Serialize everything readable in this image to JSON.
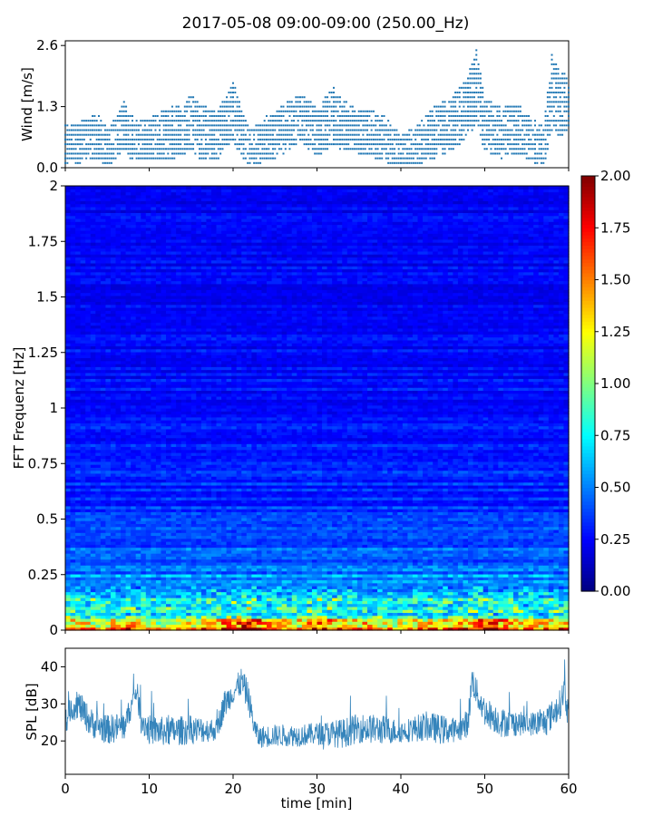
{
  "figure": {
    "title": "2017-05-08 09:00-09:00 (250.00_Hz)"
  },
  "chart_data": [
    {
      "id": "wind",
      "type": "scatter",
      "ylabel": "Wind [m/s]",
      "xlabel": "",
      "xlim": [
        0,
        60
      ],
      "ylim": [
        0,
        2.7
      ],
      "yticks": [
        0.0,
        1.3,
        2.6
      ],
      "ytick_labels": [
        "0.0",
        "1.3",
        "2.6"
      ],
      "color": "#1f77b4",
      "quantization_step": 0.1,
      "sample_interval_min": 0.25,
      "envelope": {
        "x": [
          0,
          2,
          4,
          5,
          6,
          7,
          8,
          10,
          12,
          14,
          15,
          16,
          18,
          19,
          20,
          21,
          22,
          24,
          25,
          27,
          28,
          30,
          32,
          33,
          35,
          36,
          38,
          40,
          42,
          44,
          46,
          48,
          49,
          50,
          52,
          54,
          56,
          57,
          58,
          59,
          60
        ],
        "y_mean": [
          0.5,
          0.55,
          0.6,
          0.4,
          0.55,
          0.8,
          0.6,
          0.55,
          0.6,
          0.7,
          0.85,
          0.65,
          0.55,
          0.85,
          1.0,
          0.7,
          0.4,
          0.6,
          0.65,
          0.85,
          1.0,
          0.7,
          0.9,
          0.8,
          0.75,
          0.7,
          0.6,
          0.35,
          0.45,
          0.65,
          0.8,
          1.1,
          1.4,
          0.8,
          0.65,
          0.75,
          0.5,
          0.45,
          1.2,
          1.05,
          1.3
        ],
        "y_max": [
          0.9,
          1.0,
          1.2,
          0.8,
          1.1,
          1.45,
          1.1,
          1.05,
          1.3,
          1.35,
          1.6,
          1.4,
          1.2,
          1.5,
          1.9,
          1.3,
          0.8,
          1.1,
          1.2,
          1.5,
          1.6,
          1.3,
          1.75,
          1.45,
          1.3,
          1.25,
          1.15,
          0.7,
          0.9,
          1.35,
          1.5,
          2.0,
          2.6,
          1.5,
          1.3,
          1.4,
          1.0,
          0.9,
          2.5,
          2.1,
          2.0
        ]
      }
    },
    {
      "id": "spectrogram",
      "type": "heatmap",
      "ylabel": "FFT Frequenz [Hz]",
      "xlabel": "",
      "xlim": [
        0,
        60
      ],
      "ylim": [
        0,
        2
      ],
      "yticks": [
        0,
        0.25,
        0.5,
        0.75,
        1,
        1.25,
        1.5,
        1.75,
        2
      ],
      "ytick_labels": [
        "0",
        "0.25",
        "0.5",
        "0.75",
        "1",
        "1.25",
        "1.5",
        "1.75",
        "2"
      ],
      "colormap": "jet",
      "value_range": [
        0,
        2
      ],
      "colorbar": {
        "ticks": [
          0.0,
          0.25,
          0.5,
          0.75,
          1.0,
          1.25,
          1.5,
          1.75,
          2.0
        ],
        "tick_labels": [
          "0.00",
          "0.25",
          "0.50",
          "0.75",
          "1.00",
          "1.25",
          "1.50",
          "1.75",
          "2.00"
        ]
      },
      "low_band_intensity": {
        "x": [
          0,
          5,
          8,
          10,
          15,
          20,
          22,
          25,
          28,
          30,
          35,
          40,
          45,
          48,
          50,
          55,
          60
        ],
        "v": [
          1.4,
          1.2,
          1.5,
          1.1,
          1.3,
          1.6,
          1.8,
          1.3,
          1.3,
          1.6,
          1.4,
          1.2,
          1.4,
          1.5,
          1.7,
          1.3,
          1.4
        ]
      },
      "frequency_profile": {
        "f": [
          0,
          0.05,
          0.1,
          0.2,
          0.3,
          0.5,
          0.75,
          1.0,
          1.5,
          2.0
        ],
        "v": [
          1.6,
          0.9,
          0.75,
          0.55,
          0.45,
          0.35,
          0.3,
          0.27,
          0.25,
          0.24
        ]
      }
    },
    {
      "id": "spl",
      "type": "line",
      "ylabel": "SPL [dB]",
      "xlabel": "time [min]",
      "xlim": [
        0,
        60
      ],
      "ylim": [
        11,
        45
      ],
      "yticks": [
        20,
        30,
        40
      ],
      "ytick_labels": [
        "20",
        "30",
        "40"
      ],
      "xticks": [
        0,
        10,
        20,
        30,
        40,
        50,
        60
      ],
      "xtick_labels": [
        "0",
        "10",
        "20",
        "30",
        "40",
        "50",
        "60"
      ],
      "color": "#1f77b4",
      "envelope": {
        "x": [
          0,
          0.5,
          1.5,
          3,
          5,
          7,
          8,
          8.5,
          9,
          10,
          12,
          15,
          18,
          19,
          20,
          21,
          21.8,
          22.5,
          23,
          25,
          28,
          30,
          33,
          35,
          38,
          40,
          43,
          45,
          47,
          48,
          48.5,
          49,
          50,
          52,
          55,
          57,
          58,
          59,
          59.5,
          60
        ],
        "mean": [
          24,
          28,
          30,
          25,
          23,
          24,
          30,
          34,
          26,
          23,
          22.5,
          23,
          23,
          30,
          33,
          36,
          32,
          24,
          21,
          21.5,
          21.5,
          22,
          22,
          23.5,
          23,
          22.5,
          24,
          23,
          23,
          25,
          37,
          33,
          28,
          25,
          24.5,
          25,
          27,
          30,
          34,
          26
        ],
        "spread": [
          3,
          3,
          4,
          4,
          4,
          4,
          3,
          3,
          4,
          4,
          4,
          4,
          3,
          4,
          3,
          4,
          4,
          3,
          3,
          3,
          3,
          3,
          4,
          4,
          4,
          3,
          4,
          4,
          3,
          4,
          4,
          4,
          4,
          4,
          3,
          4,
          4,
          4,
          4,
          4
        ]
      }
    }
  ]
}
